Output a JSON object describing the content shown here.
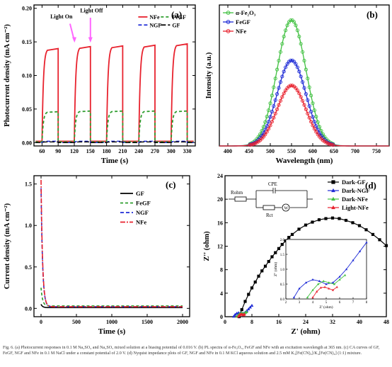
{
  "caption": "Fig. 6. (a) Photocurrent responses in 0.1 M Na₂SO₄ and Na₂SO₃ mixed solution at a biasing potential of 0.016 V. (b) PL spectra of α-Fe₂O₃, FeGF and NFe with an excitation wavelength at 365 nm. (c) CA curves of GF, FeGF, NGF and NFe in 0.1 M NaCl under a constant potential of 2.0 V. (d) Nyquist impedance plots of GF, NGF and NFe in 0.1 M KCl aqueous solution and 2.5 mM K₃[Fe(CN)₆]/K₄[Fe(CN)₆] (1:1) mixture.",
  "colors": {
    "NFe": "#e8222e",
    "FeGF": "#2f9e2f",
    "NGF": "#1e2bd6",
    "GF": "#000000",
    "alpha": "#40c040"
  },
  "chart_data": [
    {
      "panel_label": "(a)",
      "type": "line",
      "xlabel": "Time (s)",
      "ylabel": "Photocurrent density (mA cm⁻²)",
      "xlim": [
        45,
        345
      ],
      "ylim": [
        -0.005,
        0.205
      ],
      "xticks": [
        60,
        90,
        120,
        150,
        180,
        210,
        240,
        270,
        300,
        330
      ],
      "yticks": [
        0.0,
        0.05,
        0.1,
        0.15,
        0.2
      ],
      "ytick_labels": [
        "0.00",
        "0.05",
        "0.10",
        "0.15",
        "0.20"
      ],
      "annotations": [
        "Light On",
        "Light Off"
      ],
      "legend_location": "top-right",
      "light_on_intervals": [
        [
          60,
          90
        ],
        [
          120,
          150
        ],
        [
          180,
          210
        ],
        [
          240,
          270
        ],
        [
          300,
          330
        ]
      ],
      "series": [
        {
          "name": "NFe",
          "on_levels": [
            0.14,
            0.143,
            0.144,
            0.145,
            0.147
          ],
          "off_level": 0.002
        },
        {
          "name": "FeGF",
          "on_levels": [
            0.046,
            0.047,
            0.047,
            0.047,
            0.047
          ],
          "off_level": 0.001
        },
        {
          "name": "NGF",
          "on_levels": [
            0.002,
            0.002,
            0.002,
            0.002,
            0.002
          ],
          "off_level": 0.0
        },
        {
          "name": "GF",
          "on_levels": [
            0.001,
            0.001,
            0.001,
            0.001,
            0.001
          ],
          "off_level": 0.0
        }
      ]
    },
    {
      "panel_label": "(b)",
      "type": "line",
      "xlabel": "Wavelength (nm)",
      "ylabel": "Intensity (a.u.)",
      "xlim": [
        380,
        780
      ],
      "xticks": [
        400,
        450,
        500,
        550,
        600,
        650,
        700,
        750
      ],
      "legend_location": "top-left",
      "series": [
        {
          "name": "α-Fe₂O₃",
          "peak_x": 550,
          "peak": 1.0
        },
        {
          "name": "FeGF",
          "peak_x": 550,
          "peak": 0.68
        },
        {
          "name": "NFe",
          "peak_x": 550,
          "peak": 0.48
        }
      ]
    },
    {
      "panel_label": "(c)",
      "type": "line",
      "xlabel": "Time (s)",
      "ylabel": "Current density (mA cm⁻²)",
      "xlim": [
        -100,
        2100
      ],
      "ylim": [
        -0.1,
        1.6
      ],
      "xticks": [
        0,
        500,
        1000,
        1500,
        2000
      ],
      "yticks": [
        0.0,
        0.5,
        1.0,
        1.5
      ],
      "ytick_labels": [
        "0.0",
        "0.5",
        "1.0",
        "1.5"
      ],
      "legend_location": "top-right",
      "series": [
        {
          "name": "GF",
          "initial": 0.05,
          "steady": 0.01
        },
        {
          "name": "FeGF",
          "initial": 0.25,
          "steady": 0.03
        },
        {
          "name": "NGF",
          "initial": 1.45,
          "steady": 0.02
        },
        {
          "name": "NFe",
          "initial": 1.55,
          "steady": 0.02
        }
      ]
    },
    {
      "panel_label": "(d)",
      "type": "scatter",
      "xlabel": "Z' (ohm)",
      "ylabel": "Z'' (ohm)",
      "xlim": [
        0,
        48
      ],
      "ylim": [
        0,
        24
      ],
      "xticks": [
        0,
        8,
        16,
        24,
        32,
        40,
        48
      ],
      "yticks": [
        0,
        4,
        8,
        12,
        16,
        20,
        24
      ],
      "legend_location": "top-right",
      "circuit_labels": [
        "Rohm",
        "CPE",
        "Rct",
        "W"
      ],
      "series": [
        {
          "name": "Dark-GF",
          "x": [
            4.2,
            5,
            6,
            7,
            8,
            9,
            10,
            11,
            12,
            13,
            14,
            15,
            16,
            17,
            18,
            19,
            20,
            22,
            24,
            26,
            28,
            30,
            32,
            34,
            36,
            38,
            40,
            42,
            44,
            46,
            48
          ],
          "y": [
            0,
            1.2,
            2.6,
            3.8,
            4.9,
            5.9,
            6.9,
            7.8,
            8.6,
            9.4,
            10.2,
            10.9,
            11.6,
            12.3,
            12.9,
            13.5,
            14.0,
            14.9,
            15.6,
            16.1,
            16.5,
            16.7,
            16.8,
            16.7,
            16.4,
            16.0,
            15.5,
            14.8,
            14.0,
            13.1,
            12.1
          ]
        },
        {
          "name": "Dark-NGF",
          "x": [
            2.6,
            3.0,
            3.5,
            4.0,
            4.5,
            5.0,
            5.5,
            6.0,
            6.5,
            7.0,
            7.5,
            8.0
          ],
          "y": [
            0.05,
            0.35,
            0.55,
            0.65,
            0.6,
            0.5,
            0.55,
            0.75,
            1.0,
            1.3,
            1.6,
            1.9
          ]
        },
        {
          "name": "Dark-NFe",
          "x": [
            3.6,
            4.0,
            4.4,
            4.8,
            5.2,
            5.6,
            6.0,
            6.4
          ],
          "y": [
            0.05,
            0.3,
            0.5,
            0.6,
            0.55,
            0.5,
            0.65,
            0.8
          ]
        },
        {
          "name": "Light-NFe",
          "x": [
            4.0,
            4.3,
            4.6,
            4.9,
            5.2,
            5.5,
            5.8
          ],
          "y": [
            0.05,
            0.25,
            0.38,
            0.4,
            0.35,
            0.3,
            0.4
          ]
        }
      ],
      "inset": {
        "xlabel": "Z' (ohm)",
        "ylabel": "Z'' (ohm)",
        "xlim": [
          2,
          8
        ],
        "ylim": [
          0,
          2.0
        ],
        "xticks": [
          2,
          3,
          4,
          5,
          6,
          7,
          8
        ],
        "yticks": [
          0.0,
          0.5,
          1.0,
          1.5,
          2.0
        ],
        "ytick_labels": [
          "0.0",
          "0.5",
          "1.0",
          "1.5",
          "2.0"
        ]
      }
    }
  ]
}
